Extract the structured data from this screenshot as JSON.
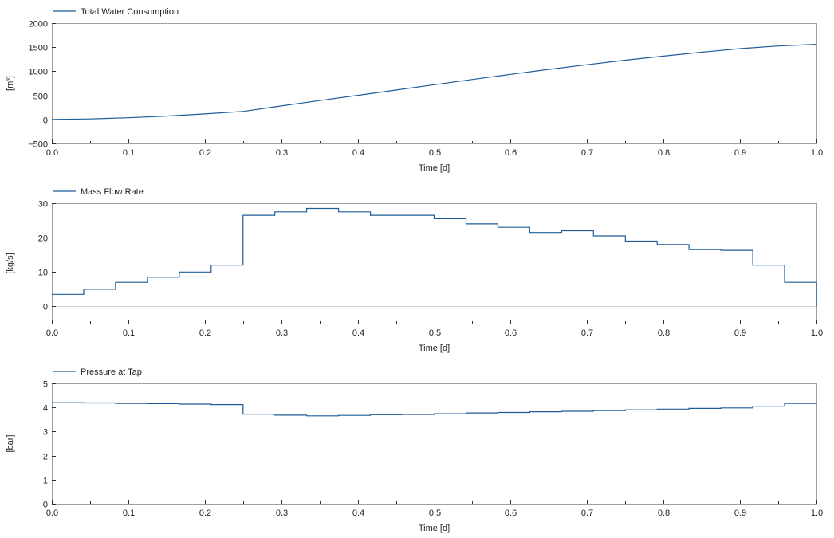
{
  "chart_data": [
    {
      "type": "line",
      "legend": [
        "Total Water Consumption"
      ],
      "legend_position": "top-left",
      "xlabel": "Time [d]",
      "ylabel": "[m³]",
      "xlim": [
        0,
        1
      ],
      "ylim": [
        -500,
        2000
      ],
      "xticks": [
        0,
        0.1,
        0.2,
        0.3,
        0.4,
        0.5,
        0.6,
        0.7,
        0.8,
        0.9,
        1
      ],
      "xtick_labels": [
        "0.0",
        "0.1",
        "0.2",
        "0.3",
        "0.4",
        "0.5",
        "0.6",
        "0.7",
        "0.8",
        "0.9",
        "1.0"
      ],
      "yticks": [
        -500,
        0,
        500,
        1000,
        1500,
        2000
      ],
      "ytick_labels": [
        "−500",
        "0",
        "500",
        "1000",
        "1500",
        "2000"
      ],
      "zero_line": true,
      "series": [
        {
          "name": "Total Water Consumption",
          "color": "#1f5c99",
          "step": false,
          "x": [
            0,
            0.05,
            0.1,
            0.15,
            0.2,
            0.25,
            0.3,
            0.35,
            0.4,
            0.45,
            0.5,
            0.55,
            0.6,
            0.65,
            0.7,
            0.75,
            0.8,
            0.85,
            0.9,
            0.95,
            1.0
          ],
          "y": [
            0,
            10,
            35,
            70,
            115,
            165,
            280,
            390,
            500,
            610,
            720,
            830,
            935,
            1040,
            1135,
            1230,
            1315,
            1395,
            1470,
            1525,
            1560
          ]
        }
      ]
    },
    {
      "type": "line",
      "legend": [
        "Mass Flow Rate"
      ],
      "legend_position": "top-left",
      "xlabel": "Time [d]",
      "ylabel": "[kg/s]",
      "xlim": [
        0,
        1
      ],
      "ylim": [
        -5,
        30
      ],
      "xticks": [
        0,
        0.1,
        0.2,
        0.3,
        0.4,
        0.5,
        0.6,
        0.7,
        0.8,
        0.9,
        1
      ],
      "xtick_labels": [
        "0.0",
        "0.1",
        "0.2",
        "0.3",
        "0.4",
        "0.5",
        "0.6",
        "0.7",
        "0.8",
        "0.9",
        "1.0"
      ],
      "yticks": [
        0,
        10,
        20,
        30
      ],
      "ytick_labels": [
        "0",
        "10",
        "20",
        "30"
      ],
      "zero_line": true,
      "series": [
        {
          "name": "Mass Flow Rate",
          "color": "#1f5c99",
          "step": true,
          "x": [
            0,
            0.0417,
            0.0833,
            0.125,
            0.1667,
            0.2083,
            0.25,
            0.2917,
            0.3333,
            0.375,
            0.4167,
            0.4583,
            0.5,
            0.5417,
            0.5833,
            0.625,
            0.6667,
            0.7083,
            0.75,
            0.7917,
            0.8333,
            0.875,
            0.9167,
            0.9583,
            1.0
          ],
          "y": [
            3.5,
            5,
            7,
            8.5,
            10,
            12,
            26.5,
            27.5,
            28.5,
            27.5,
            26.5,
            26.5,
            25.5,
            24,
            23,
            21.5,
            22,
            20.5,
            19,
            18,
            16.5,
            16.3,
            12,
            7,
            0
          ]
        }
      ]
    },
    {
      "type": "line",
      "legend": [
        "Pressure at Tap"
      ],
      "legend_position": "top-left",
      "xlabel": "Time [d]",
      "ylabel": "[bar]",
      "xlim": [
        0,
        1
      ],
      "ylim": [
        0,
        5
      ],
      "xticks": [
        0,
        0.1,
        0.2,
        0.3,
        0.4,
        0.5,
        0.6,
        0.7,
        0.8,
        0.9,
        1
      ],
      "xtick_labels": [
        "0.0",
        "0.1",
        "0.2",
        "0.3",
        "0.4",
        "0.5",
        "0.6",
        "0.7",
        "0.8",
        "0.9",
        "1.0"
      ],
      "yticks": [
        0,
        1,
        2,
        3,
        4,
        5
      ],
      "ytick_labels": [
        "0",
        "1",
        "2",
        "3",
        "4",
        "5"
      ],
      "zero_line": false,
      "series": [
        {
          "name": "Pressure at Tap",
          "color": "#1f5c99",
          "step": true,
          "x": [
            0,
            0.0417,
            0.0833,
            0.125,
            0.1667,
            0.2083,
            0.25,
            0.2917,
            0.3333,
            0.375,
            0.4167,
            0.4583,
            0.5,
            0.5417,
            0.5833,
            0.625,
            0.6667,
            0.7083,
            0.75,
            0.7917,
            0.8333,
            0.875,
            0.9167,
            0.9583,
            1.0
          ],
          "y": [
            4.2,
            4.19,
            4.17,
            4.16,
            4.14,
            4.12,
            3.72,
            3.68,
            3.65,
            3.67,
            3.7,
            3.71,
            3.74,
            3.77,
            3.79,
            3.82,
            3.84,
            3.87,
            3.9,
            3.93,
            3.96,
            3.98,
            4.05,
            4.17,
            4.18
          ]
        }
      ]
    }
  ]
}
